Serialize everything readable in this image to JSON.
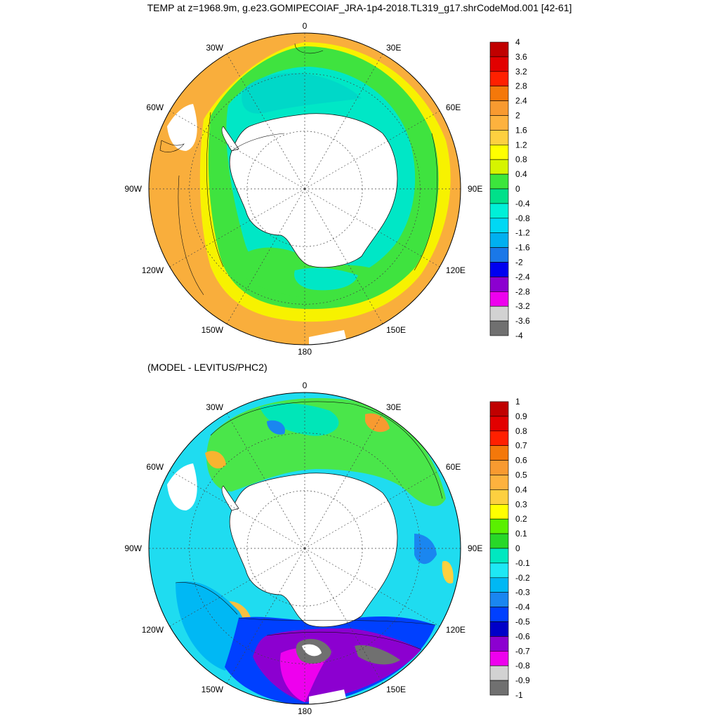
{
  "title": "TEMP at z=1968.9m, g.e23.GOMIPECOIAF_JRA-1p4-2018.TL319_g17.shrCodeMod.001 [42-61]",
  "subtitle": "(MODEL - LEVITUS/PHC2)",
  "lon_labels": [
    "0",
    "30E",
    "60E",
    "90E",
    "120E",
    "150E",
    "180",
    "150W",
    "120W",
    "90W",
    "60W",
    "30W"
  ],
  "top_colorbar": {
    "labels": [
      "4",
      "3.6",
      "3.2",
      "2.8",
      "2.4",
      "2",
      "1.6",
      "1.2",
      "0.8",
      "0.4",
      "0",
      "-0.4",
      "-0.8",
      "-1.2",
      "-1.6",
      "-2",
      "-2.4",
      "-2.8",
      "-3.2",
      "-3.6",
      "-4"
    ],
    "colors": [
      "#c00000",
      "#e20000",
      "#ff2000",
      "#f4780a",
      "#f89a30",
      "#fdb23e",
      "#fdd040",
      "#ffff00",
      "#d6f400",
      "#3ce63c",
      "#00e08a",
      "#00f0d8",
      "#00d8f4",
      "#00b0f0",
      "#1a78e8",
      "#0000f0",
      "#8c00d0",
      "#ee00ee",
      "#d2d2d2",
      "#707070"
    ]
  },
  "bottom_colorbar": {
    "labels": [
      "1",
      "0.9",
      "0.8",
      "0.7",
      "0.6",
      "0.5",
      "0.4",
      "0.3",
      "0.2",
      "0.1",
      "0",
      "-0.1",
      "-0.2",
      "-0.3",
      "-0.4",
      "-0.5",
      "-0.6",
      "-0.7",
      "-0.8",
      "-0.9",
      "-1"
    ],
    "colors": [
      "#c00000",
      "#e20000",
      "#ff2000",
      "#f4780a",
      "#f89a30",
      "#fdb23e",
      "#fdd040",
      "#ffff00",
      "#5af000",
      "#28d828",
      "#00e8c0",
      "#1ee8f4",
      "#00b8f4",
      "#1a86f0",
      "#0040ff",
      "#0000c8",
      "#8c00d0",
      "#ee00ee",
      "#d2d2d2",
      "#707070"
    ]
  }
}
